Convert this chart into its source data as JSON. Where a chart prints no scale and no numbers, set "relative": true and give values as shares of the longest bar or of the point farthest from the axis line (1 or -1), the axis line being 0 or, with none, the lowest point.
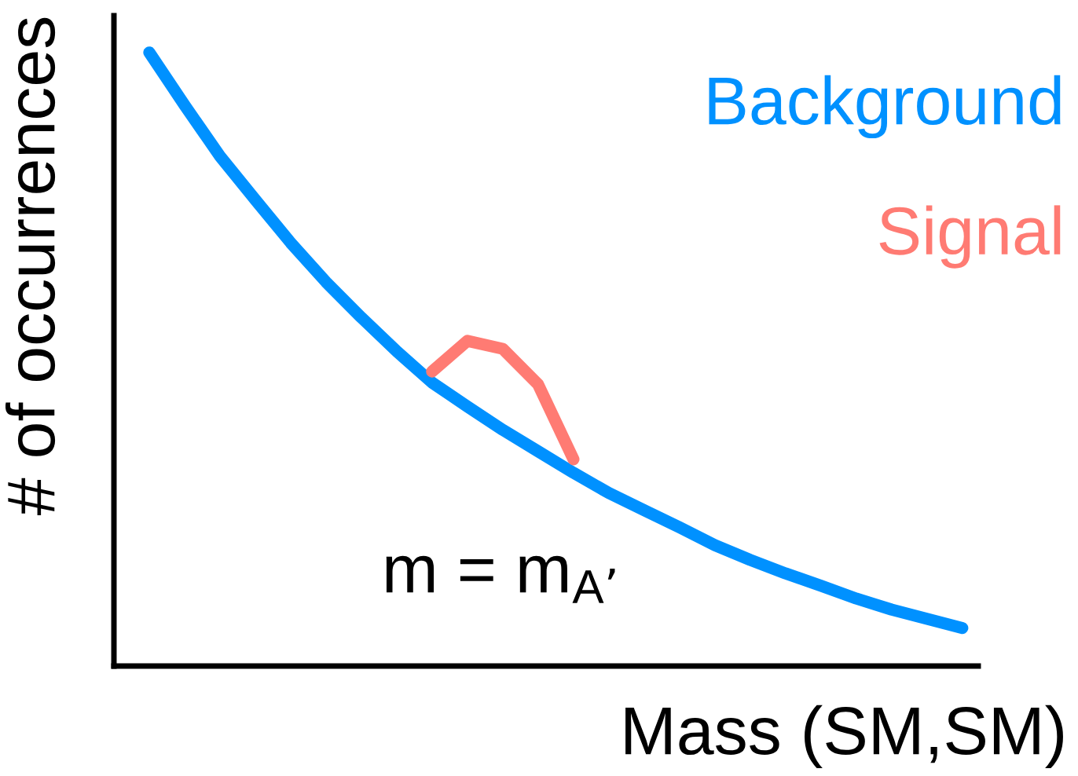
{
  "chart_data": {
    "type": "line",
    "relative": true,
    "xlabel": "Mass (SM,SM)",
    "ylabel": "# of occurrences",
    "categories": [
      null,
      null,
      null,
      null,
      null,
      null,
      null,
      null,
      null,
      null,
      null,
      null,
      null,
      null,
      null,
      null,
      null,
      null,
      null,
      null,
      null,
      null,
      null,
      null
    ],
    "series": [
      {
        "name": "Background",
        "color": "#0091ff",
        "values": [
          1,
          0.914,
          0.831,
          0.76,
          0.69,
          0.626,
          0.568,
          0.513,
          0.462,
          0.423,
          0.385,
          0.35,
          0.315,
          0.282,
          0.254,
          0.226,
          0.197,
          0.173,
          0.151,
          0.131,
          0.11,
          0.092,
          0.077,
          0.062
        ]
      },
      {
        "name": "Signal",
        "color": "#ff7b73",
        "values": [
          null,
          null,
          null,
          null,
          null,
          null,
          null,
          null,
          0.48,
          0.53,
          0.517,
          0.459,
          0.337,
          null,
          null,
          null,
          null,
          null,
          null,
          null,
          null,
          null,
          null,
          null
        ]
      }
    ],
    "annotations": [
      "m = m$_{A’}$"
    ],
    "legend": false,
    "line_style": "solid"
  }
}
